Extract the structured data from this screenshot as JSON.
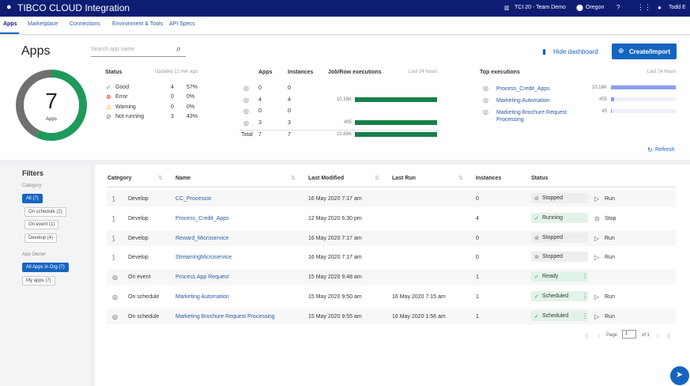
{
  "header": {
    "brand": "TIBCO CLOUD Integration",
    "org": "TCI 20 - Team Demo",
    "region": "Oregon",
    "user": "Todd E"
  },
  "tabs": [
    "Apps",
    "Marketplace",
    "Connections",
    "Environment & Tools",
    "API Specs"
  ],
  "dashboard": {
    "title": "Apps",
    "search_placeholder": "Search app name",
    "hide_button": "Hide dashboard",
    "create_button": "Create/Import",
    "total": {
      "value": 7,
      "label": "Apps"
    },
    "status": {
      "title": "Status",
      "updated": "Updated 12 min ago",
      "rows": [
        {
          "label": "Good",
          "count": 4,
          "pct": "57%"
        },
        {
          "label": "Error",
          "count": 0,
          "pct": "0%"
        },
        {
          "label": "Warning",
          "count": 0,
          "pct": "0%"
        },
        {
          "label": "Not running",
          "count": 3,
          "pct": "43%"
        }
      ]
    },
    "instances": {
      "headers": [
        "Apps",
        "Instances",
        "Job/Row executions",
        "Last 24 hours"
      ],
      "rows": [
        {
          "apps": 0,
          "instances": 0
        },
        {
          "apps": 4,
          "instances": 4,
          "executions": "10.16K"
        },
        {
          "apps": 0,
          "instances": 0
        },
        {
          "apps": 3,
          "instances": 3,
          "executions": "495"
        }
      ],
      "total": {
        "label": "Total",
        "apps": 7,
        "instances": 7,
        "executions": "10.65K"
      }
    },
    "top_executions": {
      "title": "Top executions",
      "period": "Last 24 hours",
      "rows": [
        {
          "name": "Process_Credit_Apps",
          "value": 10160,
          "label": "10.16K"
        },
        {
          "name": "Marketing Automation",
          "value": 455
        },
        {
          "name": "Marketing Brochure Request Processing",
          "value": 45
        }
      ]
    },
    "refresh": "Refresh"
  },
  "filters": {
    "title": "Filters",
    "category_title": "Category",
    "categories": [
      "All (7)",
      "On schedule (2)",
      "On event (1)",
      "Develop (4)"
    ],
    "owner_title": "App Owner",
    "owners": [
      "All Apps in Org (7)",
      "My apps (7)"
    ]
  },
  "table": {
    "headers": [
      "Category",
      "Name",
      "Last Modified",
      "Last Run",
      "Instances",
      "Status"
    ],
    "rows": [
      [
        "Develop",
        "CC_Processor",
        "16 May 2020 7:17 am",
        null,
        0,
        "Stopped",
        "Run"
      ],
      [
        "Develop",
        "Process_Credit_Apps",
        "12 May 2020 6:30 pm",
        null,
        4,
        "Running",
        "Stop"
      ],
      [
        "Develop",
        "Reward_Microservice",
        "16 May 2020 7:17 am",
        null,
        0,
        "Stopped",
        "Run"
      ],
      [
        "Develop",
        "StreamingMicroservice",
        "16 May 2020 7:17 am",
        null,
        0,
        "Stopped",
        "Run"
      ],
      [
        "On event",
        "Process App Request",
        "15 May 2020 9:48 am",
        null,
        1,
        "Ready",
        null
      ],
      [
        "On schedule",
        "Marketing Automation",
        "15 May 2020 9:50 am",
        "16 May 2020 7:15 am",
        1,
        "Scheduled",
        "Run"
      ],
      [
        "On schedule",
        "Marketing Brochure Request Processing",
        "15 May 2020 9:55 am",
        "16 May 2020 1:56 am",
        1,
        "Scheduled",
        "Run"
      ]
    ]
  },
  "pagination": {
    "label": "Page",
    "page": 1,
    "of": "of 1"
  }
}
